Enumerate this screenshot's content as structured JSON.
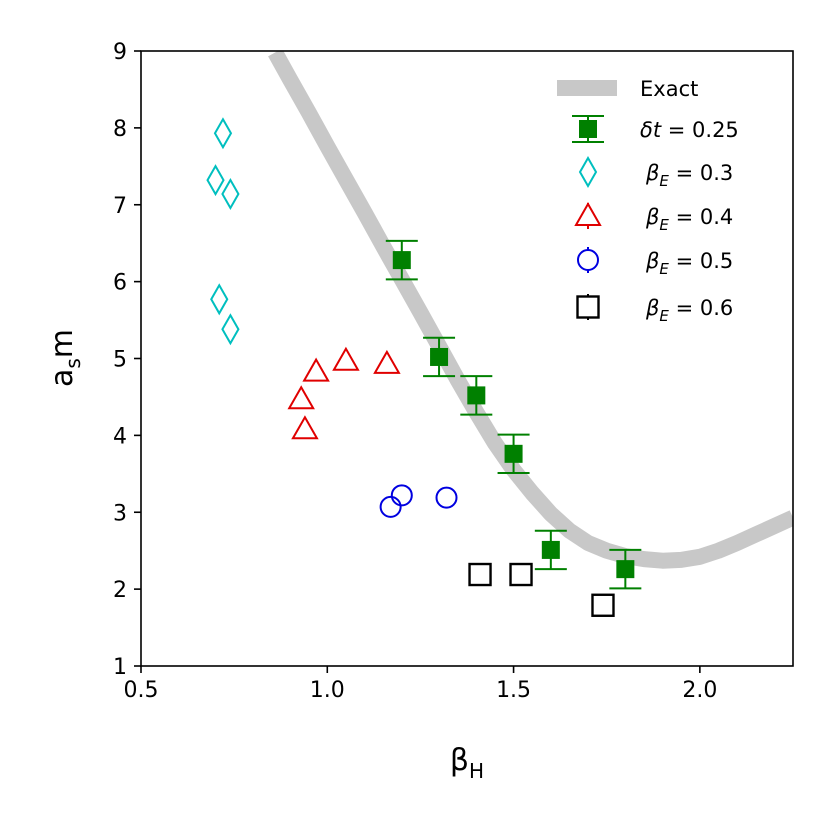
{
  "chart_data": {
    "type": "scatter",
    "title": "",
    "xlabel_main": "β",
    "xlabel_sub": "H",
    "ylabel_main": "a",
    "ylabel_sub": "s",
    "ylabel_tail": "m",
    "xlim": [
      0.5,
      2.25
    ],
    "ylim": [
      1,
      9
    ],
    "xticks": [
      0.5,
      1.0,
      1.5,
      2.0
    ],
    "xtick_labels": [
      "0.5",
      "1.0",
      "1.5",
      "2.0"
    ],
    "yticks": [
      1,
      2,
      3,
      4,
      5,
      6,
      7,
      8,
      9
    ],
    "ytick_labels": [
      "1",
      "2",
      "3",
      "4",
      "5",
      "6",
      "7",
      "8",
      "9"
    ],
    "grid": false,
    "legend_position": "top-right",
    "exact_curve": {
      "name": "Exact",
      "color": "#c8c8c8",
      "x": [
        0.86,
        0.9,
        0.95,
        1.0,
        1.05,
        1.1,
        1.15,
        1.2,
        1.25,
        1.3,
        1.35,
        1.4,
        1.45,
        1.5,
        1.55,
        1.6,
        1.65,
        1.7,
        1.75,
        1.8,
        1.85,
        1.9,
        1.95,
        2.0,
        2.05,
        2.1,
        2.15,
        2.2,
        2.25
      ],
      "y": [
        8.98,
        8.63,
        8.2,
        7.76,
        7.33,
        6.9,
        6.46,
        6.03,
        5.6,
        5.16,
        4.72,
        4.3,
        3.9,
        3.55,
        3.25,
        2.98,
        2.76,
        2.6,
        2.5,
        2.43,
        2.39,
        2.37,
        2.38,
        2.42,
        2.5,
        2.6,
        2.71,
        2.82,
        2.93
      ]
    },
    "series": [
      {
        "name_main": "δt",
        "name_value": " = 0.25",
        "marker": "filled-square",
        "color": "#008000",
        "x": [
          1.2,
          1.3,
          1.4,
          1.5,
          1.6,
          1.8
        ],
        "y": [
          6.28,
          5.02,
          4.52,
          3.76,
          2.51,
          2.26
        ],
        "yerr": [
          0.25,
          0.25,
          0.25,
          0.25,
          0.25,
          0.25
        ]
      },
      {
        "name_main": "β",
        "name_sub": "E",
        "name_value": " = 0.3",
        "marker": "diamond",
        "color": "#00bfbf",
        "x": [
          0.72,
          0.7,
          0.74,
          0.71,
          0.74
        ],
        "y": [
          7.93,
          7.32,
          7.14,
          5.77,
          5.38
        ]
      },
      {
        "name_main": "β",
        "name_sub": "E",
        "name_value": " = 0.4",
        "marker": "triangle",
        "color": "#e00000",
        "x": [
          0.93,
          0.94,
          0.97,
          1.05,
          1.16
        ],
        "y": [
          4.47,
          4.08,
          4.83,
          4.97,
          4.93
        ]
      },
      {
        "name_main": "β",
        "name_sub": "E",
        "name_value": " = 0.5",
        "marker": "circle",
        "color": "#0000e0",
        "x": [
          1.17,
          1.2,
          1.32
        ],
        "y": [
          3.07,
          3.22,
          3.19
        ]
      },
      {
        "name_main": "β",
        "name_sub": "E",
        "name_value": " = 0.6",
        "marker": "open-square",
        "color": "#000000",
        "x": [
          1.41,
          1.52,
          1.74
        ],
        "y": [
          2.19,
          2.19,
          1.79
        ]
      }
    ]
  }
}
